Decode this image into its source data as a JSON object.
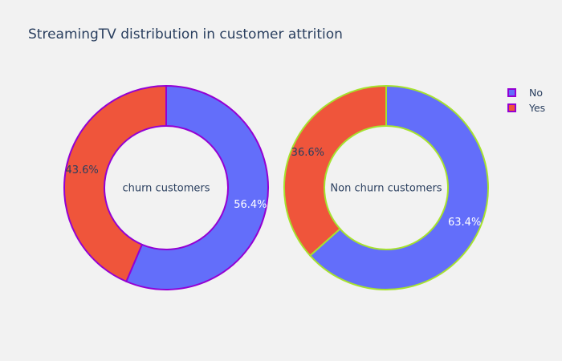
{
  "chart_data": {
    "type": "pie",
    "title": "StreamingTV distribution in customer attrition",
    "legend_position": "top-right",
    "legend": [
      {
        "label": "No",
        "color": "#636efa"
      },
      {
        "label": "Yes",
        "color": "#ef553b"
      }
    ],
    "charts": [
      {
        "center_label": "churn customers",
        "hole": true,
        "outline_color": "#9400d3",
        "slices": [
          {
            "label": "No",
            "value": 56.4,
            "text": "56.4%",
            "color": "#636efa"
          },
          {
            "label": "Yes",
            "value": 43.6,
            "text": "43.6%",
            "color": "#ef553b"
          }
        ]
      },
      {
        "center_label": "Non churn customers",
        "hole": true,
        "outline_color": "#a6e22e",
        "slices": [
          {
            "label": "No",
            "value": 63.4,
            "text": "63.4%",
            "color": "#636efa"
          },
          {
            "label": "Yes",
            "value": 36.6,
            "text": "36.6%",
            "color": "#ef553b"
          }
        ]
      }
    ]
  }
}
